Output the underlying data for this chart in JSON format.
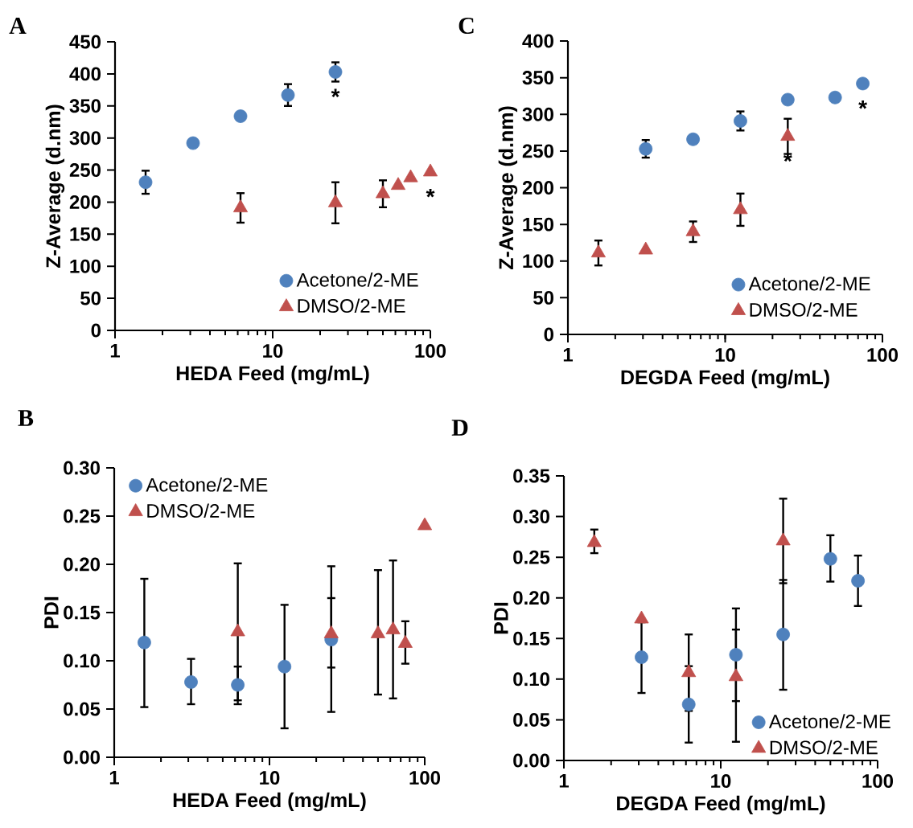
{
  "chart_data": [
    {
      "type": "scatter",
      "title": "A",
      "xlabel": "HEDA Feed (mg/mL)",
      "ylabel": "Z-Average (d.nm)",
      "log": "x",
      "legend": "bottom right",
      "xlim": [
        1,
        100
      ],
      "xticks": [
        1,
        10,
        100
      ],
      "ylim": [
        0,
        450
      ],
      "yticks": [
        0,
        50,
        100,
        150,
        200,
        250,
        300,
        350,
        400,
        450
      ],
      "series": [
        {
          "name": "Acetone/2-ME",
          "color": "#4f81bd",
          "marker": "circle",
          "x": [
            1.5625,
            3.125,
            6.25,
            12.5,
            25
          ],
          "values": [
            231,
            292,
            334,
            367,
            403
          ],
          "errors": [
            18,
            null,
            null,
            17,
            15
          ]
        },
        {
          "name": "DMSO/2-ME",
          "color": "#c0504d",
          "marker": "triangle",
          "x": [
            6.25,
            25,
            50,
            62.5,
            75,
            100
          ],
          "values": [
            191,
            199,
            213,
            226,
            238,
            247
          ],
          "errors": [
            23,
            32,
            21,
            null,
            null,
            null
          ]
        }
      ],
      "annotations": [
        {
          "text": "*",
          "x": 25,
          "y": 403
        },
        {
          "text": "*",
          "x": 100,
          "y": 247
        }
      ]
    },
    {
      "type": "scatter",
      "title": "C",
      "xlabel": "DEGDA Feed (mg/mL)",
      "ylabel": "Z-Average (d.nm)",
      "log": "x",
      "legend": "bottom right",
      "xlim": [
        1,
        100
      ],
      "xticks": [
        1,
        10,
        100
      ],
      "ylim": [
        0,
        400
      ],
      "yticks": [
        0,
        50,
        100,
        150,
        200,
        250,
        300,
        350,
        400
      ],
      "series": [
        {
          "name": "Acetone/2-ME",
          "color": "#4f81bd",
          "marker": "circle",
          "x": [
            3.125,
            6.25,
            12.5,
            25,
            50,
            75
          ],
          "values": [
            253,
            266,
            291,
            320,
            323,
            342
          ],
          "errors": [
            12,
            null,
            13,
            null,
            null,
            null
          ]
        },
        {
          "name": "DMSO/2-ME",
          "color": "#c0504d",
          "marker": "triangle",
          "x": [
            1.5625,
            3.125,
            6.25,
            12.5,
            25
          ],
          "values": [
            111,
            115,
            140,
            170,
            270
          ],
          "errors": [
            17,
            null,
            14,
            22,
            24
          ]
        }
      ],
      "annotations": [
        {
          "text": "*",
          "x": 75,
          "y": 342
        },
        {
          "text": "*",
          "x": 25,
          "y": 270
        }
      ]
    },
    {
      "type": "scatter",
      "title": "B",
      "xlabel": "HEDA Feed (mg/mL)",
      "ylabel": "PDI",
      "log": "x",
      "legend": "top left",
      "xlim": [
        1,
        100
      ],
      "xticks": [
        1,
        10,
        100
      ],
      "ylim": [
        0,
        0.3
      ],
      "yticks": [
        {
          "value": 0,
          "label": "0.00"
        },
        {
          "value": 0.05,
          "label": "0.05"
        },
        {
          "value": 0.1,
          "label": "0.10"
        },
        {
          "value": 0.15,
          "label": "0.15"
        },
        {
          "value": 0.2,
          "label": "0.20"
        },
        {
          "value": 0.25,
          "label": "0.25"
        },
        {
          "value": 0.3,
          "label": "0.30"
        }
      ],
      "series": [
        {
          "name": "Acetone/2-ME",
          "color": "#4f81bd",
          "marker": "circle",
          "x": [
            1.5625,
            3.125,
            6.25,
            12.5,
            25
          ],
          "values": [
            0.119,
            0.078,
            0.075,
            0.094,
            0.122
          ],
          "errors": [
            [
              0.052,
              0.185
            ],
            [
              0.055,
              0.102
            ],
            [
              0.055,
              0.094
            ],
            [
              0.03,
              0.158
            ],
            [
              0.093,
              0.165
            ]
          ]
        },
        {
          "name": "DMSO/2-ME",
          "color": "#c0504d",
          "marker": "triangle",
          "x": [
            6.25,
            25,
            50,
            62.5,
            75,
            100
          ],
          "values": [
            0.13,
            0.128,
            0.128,
            0.132,
            0.118,
            0.24
          ],
          "errors": [
            [
              0.059,
              0.201
            ],
            [
              0.047,
              0.198
            ],
            [
              0.065,
              0.194
            ],
            [
              0.061,
              0.204
            ],
            [
              0.097,
              0.141
            ],
            null
          ]
        }
      ]
    },
    {
      "type": "scatter",
      "title": "D",
      "xlabel": "DEGDA Feed (mg/mL)",
      "ylabel": "PDI",
      "log": "x",
      "legend": "bottom right",
      "xlim": [
        1,
        100
      ],
      "xticks": [
        1,
        10,
        100
      ],
      "ylim": [
        0,
        0.35
      ],
      "yticks": [
        {
          "value": 0,
          "label": "0.00"
        },
        {
          "value": 0.05,
          "label": "0.05"
        },
        {
          "value": 0.1,
          "label": "0.10"
        },
        {
          "value": 0.15,
          "label": "0.15"
        },
        {
          "value": 0.2,
          "label": "0.20"
        },
        {
          "value": 0.25,
          "label": "0.25"
        },
        {
          "value": 0.3,
          "label": "0.30"
        },
        {
          "value": 0.35,
          "label": "0.35"
        }
      ],
      "series": [
        {
          "name": "Acetone/2-ME",
          "color": "#4f81bd",
          "marker": "circle",
          "x": [
            3.125,
            6.25,
            12.5,
            25,
            50,
            75
          ],
          "values": [
            0.127,
            0.069,
            0.13,
            0.155,
            0.248,
            0.221
          ],
          "errors": [
            [
              0.083,
              0.17
            ],
            [
              0.022,
              0.116
            ],
            [
              0.073,
              0.187
            ],
            [
              0.087,
              0.222
            ],
            [
              0.22,
              0.277
            ],
            [
              0.19,
              0.252
            ]
          ]
        },
        {
          "name": "DMSO/2-ME",
          "color": "#c0504d",
          "marker": "triangle",
          "x": [
            1.5625,
            3.125,
            6.25,
            12.5,
            25
          ],
          "values": [
            0.268,
            0.174,
            0.108,
            0.103,
            0.27
          ],
          "errors": [
            [
              0.255,
              0.284
            ],
            null,
            [
              0.061,
              0.155
            ],
            [
              0.023,
              0.161
            ],
            [
              0.218,
              0.322
            ]
          ]
        }
      ]
    }
  ]
}
